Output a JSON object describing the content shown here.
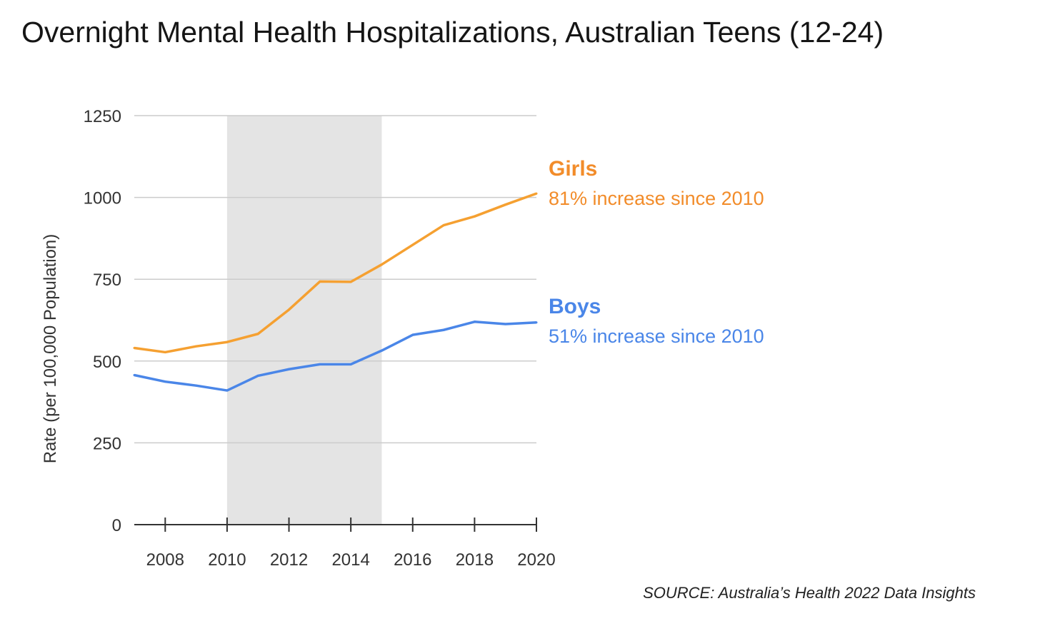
{
  "chart_data": {
    "type": "line",
    "title": "Overnight Mental Health Hospitalizations, Australian Teens (12-24)",
    "xlabel": "",
    "ylabel": "Rate (per 100,000 Population)",
    "x": [
      2007,
      2008,
      2009,
      2010,
      2011,
      2012,
      2013,
      2014,
      2015,
      2016,
      2017,
      2018,
      2019,
      2020
    ],
    "xlim": [
      2007,
      2020
    ],
    "ylim": [
      0,
      1250
    ],
    "x_ticks": [
      "2008",
      "2010",
      "2012",
      "2014",
      "2016",
      "2018",
      "2020"
    ],
    "y_ticks": [
      "0",
      "250",
      "500",
      "750",
      "1000",
      "1250"
    ],
    "grid": true,
    "shaded_region": [
      2010,
      2015
    ],
    "series": [
      {
        "name": "Girls",
        "annotation": "81% increase since 2010",
        "color": "#f5a031",
        "label_color": "#f28c2a",
        "values": [
          540,
          527,
          545,
          558,
          583,
          657,
          743,
          742,
          795,
          855,
          915,
          942,
          978,
          1012
        ]
      },
      {
        "name": "Boys",
        "annotation": "51% increase since 2010",
        "color": "#4a86e8",
        "label_color": "#4a86e8",
        "values": [
          457,
          437,
          425,
          410,
          455,
          475,
          490,
          490,
          532,
          580,
          595,
          620,
          613,
          618
        ]
      }
    ],
    "source": "SOURCE: Australia’s Health 2022 Data Insights"
  }
}
